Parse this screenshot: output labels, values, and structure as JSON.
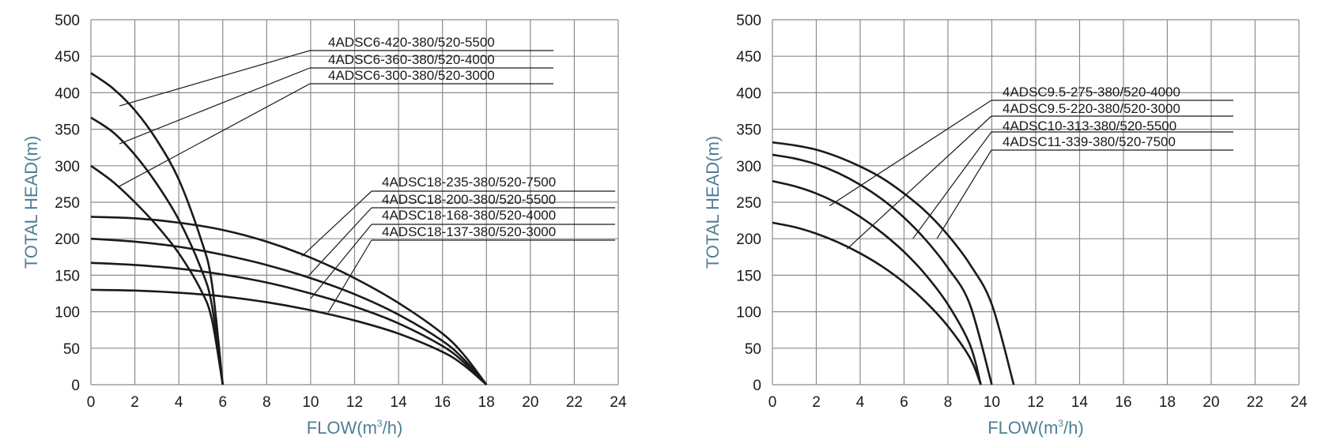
{
  "colors": {
    "curve": "#1a1a1a",
    "grid": "#8c8c8c",
    "axis_title": "#4f7f95"
  },
  "chart_data": [
    {
      "type": "line",
      "xlabel": "FLOW(m³/h)",
      "xlabel_main": "FLOW(m",
      "xlabel_sup": "3",
      "xlabel_end": "/h)",
      "ylabel": "TOTAL HEAD(m)",
      "xlim": [
        0,
        24
      ],
      "ylim": [
        0,
        500
      ],
      "x_ticks": [
        "0",
        "2",
        "4",
        "6",
        "8",
        "10",
        "12",
        "14",
        "16",
        "18",
        "20",
        "22",
        "24"
      ],
      "y_ticks": [
        "0",
        "50",
        "100",
        "150",
        "200",
        "250",
        "300",
        "350",
        "400",
        "450",
        "500"
      ],
      "grid": true,
      "series": [
        {
          "name": "4ADSC6-420-380/520-5500",
          "x": [
            0,
            1,
            2,
            3,
            4,
            5,
            5.5,
            6
          ],
          "y": [
            427,
            406,
            376,
            335,
            281,
            200,
            140,
            0
          ]
        },
        {
          "name": "4ADSC6-360-380/520-4000",
          "x": [
            0,
            1,
            2,
            3,
            4,
            5,
            5.5,
            6
          ],
          "y": [
            366,
            346,
            315,
            275,
            226,
            160,
            110,
            0
          ]
        },
        {
          "name": "4ADSC6-300-380/520-3000",
          "x": [
            0,
            1,
            2,
            3,
            4,
            5,
            5.5,
            6
          ],
          "y": [
            300,
            278,
            250,
            218,
            180,
            130,
            90,
            0
          ]
        },
        {
          "name": "4ADSC18-235-380/520-7500",
          "x": [
            0,
            2,
            4,
            6,
            8,
            10,
            12,
            14,
            16,
            17,
            18
          ],
          "y": [
            230,
            228,
            222,
            212,
            196,
            174,
            146,
            112,
            70,
            40,
            0
          ]
        },
        {
          "name": "4ADSC18-200-380/520-5500",
          "x": [
            0,
            2,
            4,
            6,
            8,
            10,
            12,
            14,
            16,
            17,
            18
          ],
          "y": [
            200,
            196,
            189,
            178,
            164,
            146,
            124,
            96,
            60,
            34,
            0
          ]
        },
        {
          "name": "4ADSC18-168-380/520-4000",
          "x": [
            0,
            2,
            4,
            6,
            8,
            10,
            12,
            14,
            16,
            17,
            18
          ],
          "y": [
            167,
            164,
            159,
            151,
            140,
            125,
            107,
            84,
            53,
            30,
            0
          ]
        },
        {
          "name": "4ADSC18-137-380/520-3000",
          "x": [
            0,
            2,
            4,
            6,
            8,
            10,
            12,
            14,
            16,
            17,
            18
          ],
          "y": [
            130,
            129,
            126,
            121,
            113,
            102,
            88,
            70,
            45,
            26,
            0
          ]
        }
      ]
    },
    {
      "type": "line",
      "xlabel": "FLOW(m³/h)",
      "xlabel_main": "FLOW(m",
      "xlabel_sup": "3",
      "xlabel_end": "/h)",
      "ylabel": "TOTAL HEAD(m)",
      "xlim": [
        0,
        24
      ],
      "ylim": [
        0,
        500
      ],
      "x_ticks": [
        "0",
        "2",
        "4",
        "6",
        "8",
        "10",
        "12",
        "14",
        "16",
        "18",
        "20",
        "22",
        "24"
      ],
      "y_ticks": [
        "0",
        "50",
        "100",
        "150",
        "200",
        "250",
        "300",
        "350",
        "400",
        "450",
        "500"
      ],
      "grid": true,
      "series": [
        {
          "name": "4ADSC9.5-275-380/520-4000",
          "x": [
            0,
            1,
            2,
            3,
            4,
            5,
            6,
            7,
            8,
            9,
            9.5
          ],
          "y": [
            279,
            272,
            262,
            248,
            230,
            208,
            182,
            150,
            110,
            55,
            0
          ]
        },
        {
          "name": "4ADSC9.5-220-380/520-3000",
          "x": [
            0,
            1,
            2,
            3,
            4,
            5,
            6,
            7,
            8,
            9,
            9.5
          ],
          "y": [
            222,
            216,
            207,
            195,
            180,
            162,
            140,
            113,
            80,
            37,
            0
          ]
        },
        {
          "name": "4ADSC10-313-380/520-5500",
          "x": [
            0,
            1,
            2,
            3,
            4,
            5,
            6,
            7,
            8,
            9,
            10
          ],
          "y": [
            315,
            310,
            302,
            290,
            274,
            254,
            229,
            198,
            160,
            110,
            0
          ]
        },
        {
          "name": "4ADSC11-339-380/520-7500",
          "x": [
            0,
            1,
            2,
            3,
            4,
            5,
            6,
            7,
            8,
            9,
            10,
            11
          ],
          "y": [
            332,
            328,
            322,
            312,
            299,
            283,
            262,
            237,
            205,
            165,
            110,
            0
          ]
        }
      ]
    }
  ]
}
